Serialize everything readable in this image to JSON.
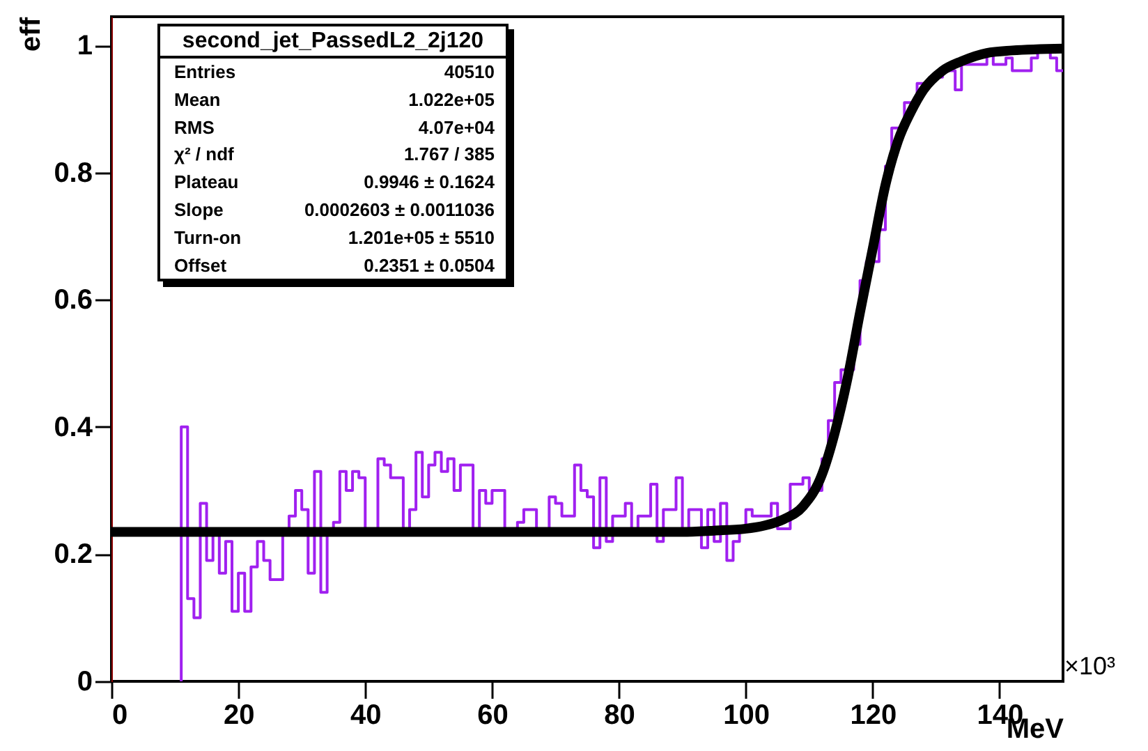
{
  "chart_data": {
    "type": "histogram",
    "xlabel": "MeV",
    "ylabel": "eff",
    "xlim": [
      0,
      150
    ],
    "xticks": [
      0,
      20,
      40,
      60,
      80,
      100,
      120,
      140
    ],
    "ylim": [
      0,
      1.045
    ],
    "yticks": [
      0,
      0.2,
      0.4,
      0.6,
      0.8,
      1
    ],
    "grid": false,
    "series": [
      {
        "type": "histogram",
        "color": "#a020f0",
        "bins": [
          11,
          12,
          13,
          14,
          15,
          16,
          17,
          18,
          19,
          20,
          21,
          22,
          23,
          24,
          25,
          26,
          27,
          28,
          29,
          30,
          31,
          32,
          33,
          34,
          35,
          36,
          37,
          38,
          39,
          40,
          41,
          42,
          43,
          44,
          45,
          46,
          47,
          48,
          49,
          50,
          51,
          52,
          53,
          54,
          55,
          56,
          57,
          58,
          59,
          60,
          61,
          62,
          63,
          64,
          65,
          66,
          67,
          68,
          69,
          70,
          71,
          72,
          73,
          74,
          75,
          76,
          77,
          78,
          79,
          80,
          81,
          82,
          83,
          84,
          85,
          86,
          87,
          88,
          89,
          90,
          91,
          92,
          93,
          94,
          95,
          96,
          97,
          98,
          99,
          100,
          101,
          102,
          103,
          104,
          105,
          106,
          107,
          108,
          109,
          110,
          111,
          112,
          113,
          114,
          115,
          116,
          117,
          118,
          119,
          120,
          121,
          122,
          123,
          124,
          125,
          126,
          127,
          128,
          129,
          130,
          131,
          132,
          133,
          134,
          135,
          136,
          137,
          138,
          139,
          140,
          141,
          142,
          143,
          144,
          145,
          146,
          147,
          148,
          149,
          150
        ],
        "values": [
          0.4,
          0.13,
          0.1,
          0.28,
          0.19,
          0.23,
          0.17,
          0.22,
          0.11,
          0.17,
          0.11,
          0.18,
          0.22,
          0.19,
          0.16,
          0.16,
          0.23,
          0.26,
          0.3,
          0.27,
          0.17,
          0.33,
          0.14,
          0.24,
          0.25,
          0.33,
          0.3,
          0.33,
          0.32,
          0.23,
          0.23,
          0.35,
          0.34,
          0.32,
          0.32,
          0.23,
          0.27,
          0.36,
          0.29,
          0.34,
          0.36,
          0.33,
          0.35,
          0.3,
          0.34,
          0.34,
          0.23,
          0.3,
          0.28,
          0.3,
          0.3,
          0.23,
          0.23,
          0.25,
          0.27,
          0.27,
          0.24,
          0.24,
          0.29,
          0.28,
          0.26,
          0.26,
          0.34,
          0.3,
          0.29,
          0.21,
          0.32,
          0.22,
          0.26,
          0.26,
          0.28,
          0.23,
          0.26,
          0.26,
          0.31,
          0.22,
          0.27,
          0.27,
          0.32,
          0.23,
          0.27,
          0.27,
          0.21,
          0.27,
          0.22,
          0.28,
          0.19,
          0.22,
          0.24,
          0.27,
          0.26,
          0.26,
          0.26,
          0.28,
          0.24,
          0.24,
          0.31,
          0.31,
          0.32,
          0.3,
          0.3,
          0.35,
          0.41,
          0.47,
          0.49,
          0.49,
          0.53,
          0.63,
          0.66,
          0.66,
          0.71,
          0.81,
          0.87,
          0.87,
          0.91,
          0.91,
          0.94,
          0.94,
          0.95,
          0.95,
          0.96,
          0.96,
          0.93,
          0.97,
          0.97,
          0.97,
          0.97,
          0.99,
          0.97,
          0.97,
          0.98,
          0.96,
          0.96,
          0.96,
          0.98,
          0.99,
          0.99,
          0.98,
          0.96
        ]
      },
      {
        "type": "line",
        "color": "#000000",
        "x": [
          0,
          20,
          40,
          60,
          80,
          90,
          95,
          100,
          103,
          106,
          109,
          112,
          114,
          116,
          118,
          120,
          122,
          124,
          126,
          128,
          131,
          134,
          138,
          142,
          150
        ],
        "values": [
          0.235,
          0.235,
          0.235,
          0.235,
          0.235,
          0.235,
          0.237,
          0.24,
          0.245,
          0.255,
          0.275,
          0.325,
          0.39,
          0.475,
          0.58,
          0.68,
          0.78,
          0.85,
          0.895,
          0.93,
          0.96,
          0.975,
          0.988,
          0.992,
          0.995
        ]
      }
    ],
    "annotations": [
      "second_jet_PassedL2_2j120",
      "Entries",
      "40510",
      "Mean",
      "1.022e+05",
      "RMS",
      "4.07e+04",
      "χ² / ndf",
      "1.767 / 385",
      "Plateau",
      "0.9946 ± 0.1624",
      "Slope",
      "0.0002603 ± 0.0011036",
      "Turn-on",
      "1.201e+05 ± 5510",
      "Offset",
      "0.2351 ± 0.0504",
      "×10³"
    ]
  }
}
